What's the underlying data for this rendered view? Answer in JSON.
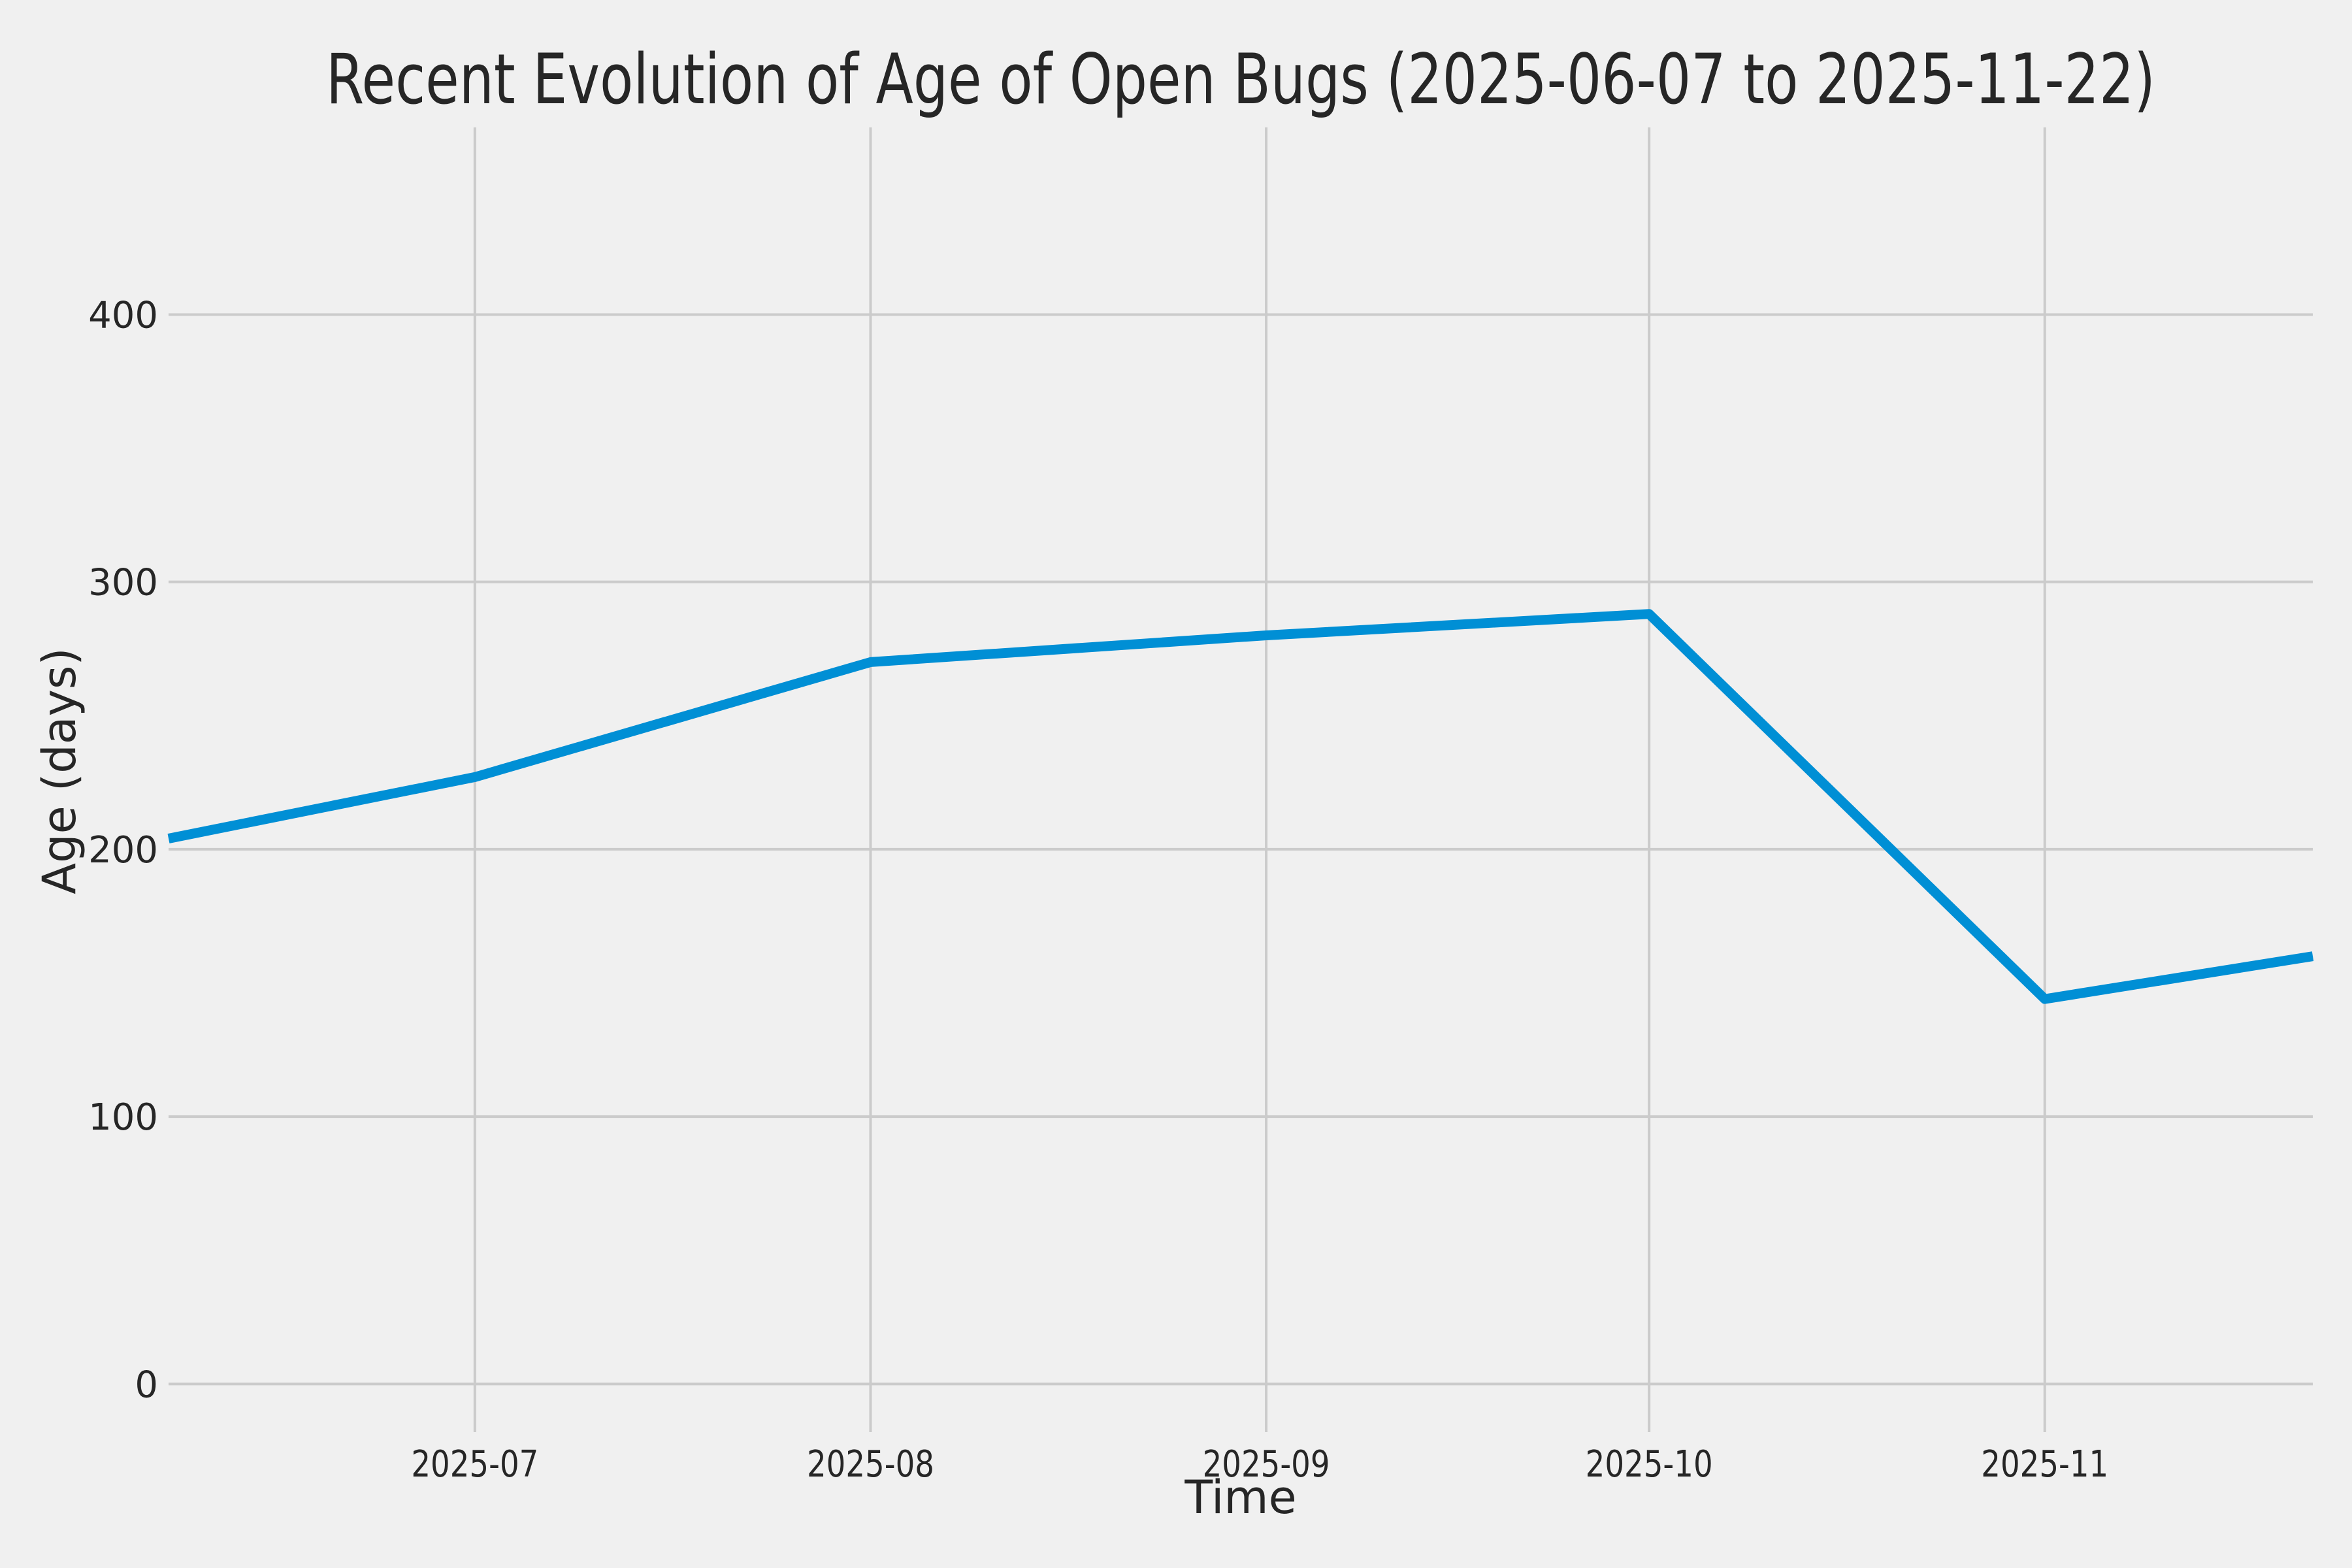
{
  "figure": {
    "background": "#F0F0F0"
  },
  "chart_data": {
    "type": "line",
    "title": "Recent Evolution of Age of Open Bugs (2025-06-07 to 2025-11-22)",
    "xlabel": "Time",
    "ylabel": "Age (days)",
    "date_range": {
      "start": "2025-06-07",
      "end": "2025-11-22",
      "total_days": 168
    },
    "x": [
      "2025-06-07",
      "2025-07-01",
      "2025-08-01",
      "2025-09-01",
      "2025-10-01",
      "2025-11-01",
      "2025-11-22"
    ],
    "x_days": [
      0,
      24,
      55,
      86,
      116,
      147,
      168
    ],
    "series": [
      {
        "name": "Age of open bugs",
        "color": "#008FD5",
        "values": [
          204,
          227,
          270,
          280,
          288,
          144,
          160
        ]
      }
    ],
    "x_ticks": [
      {
        "label": "2025-07",
        "day": 24
      },
      {
        "label": "2025-08",
        "day": 55
      },
      {
        "label": "2025-09",
        "day": 86
      },
      {
        "label": "2025-10",
        "day": 116
      },
      {
        "label": "2025-11",
        "day": 147
      }
    ],
    "y_ticks": [
      {
        "label": "0",
        "value": 0
      },
      {
        "label": "100",
        "value": 100
      },
      {
        "label": "200",
        "value": 200
      },
      {
        "label": "300",
        "value": 300
      },
      {
        "label": "400",
        "value": 400
      }
    ],
    "ylim": [
      -18,
      470
    ],
    "xlim_days": [
      0,
      168
    ],
    "grid": true,
    "legend": false,
    "colors": {
      "line": "#008FD5",
      "grid": "#CBCBCB",
      "text": "#262626",
      "background": "#F0F0F0"
    }
  }
}
